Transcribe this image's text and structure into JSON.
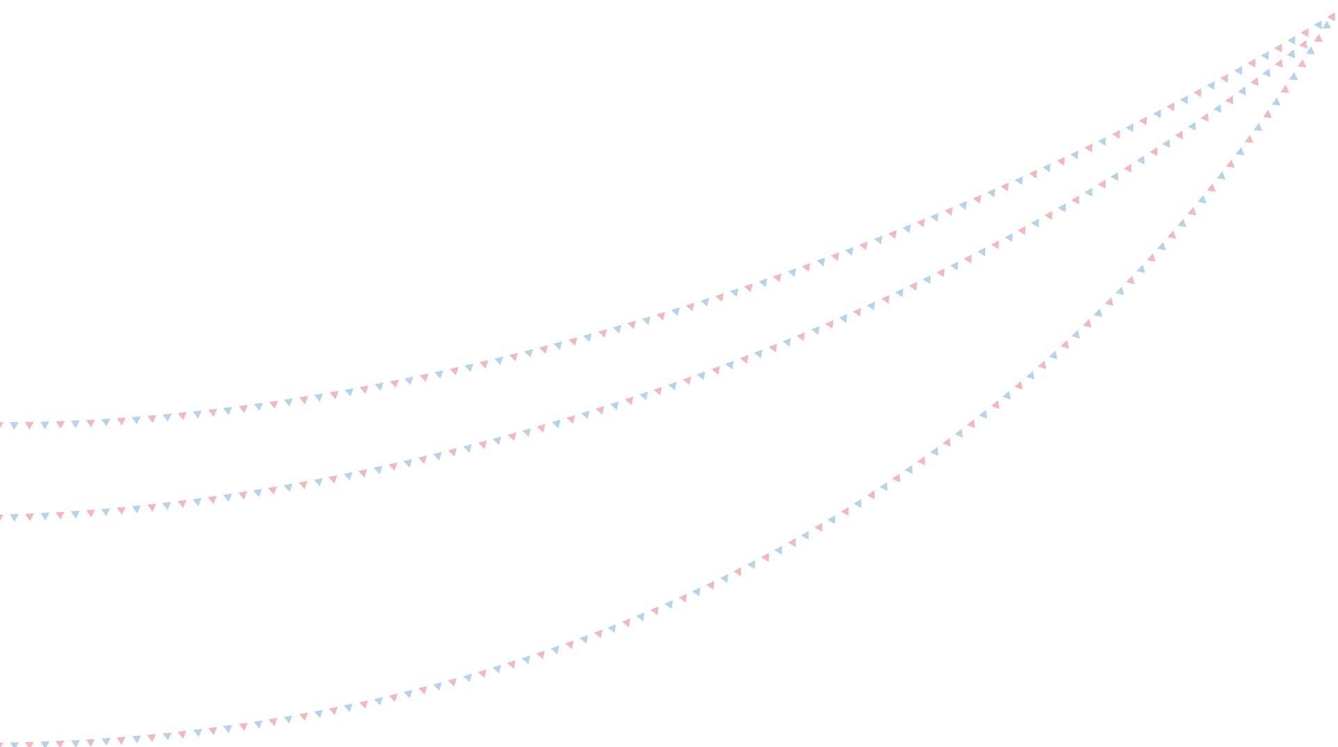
{
  "decoration": {
    "type": "bunting-garlands",
    "garland_count": 3,
    "flag_colors": [
      "#f2b8bf",
      "#b5d3e9"
    ],
    "background": "#ffffff"
  }
}
